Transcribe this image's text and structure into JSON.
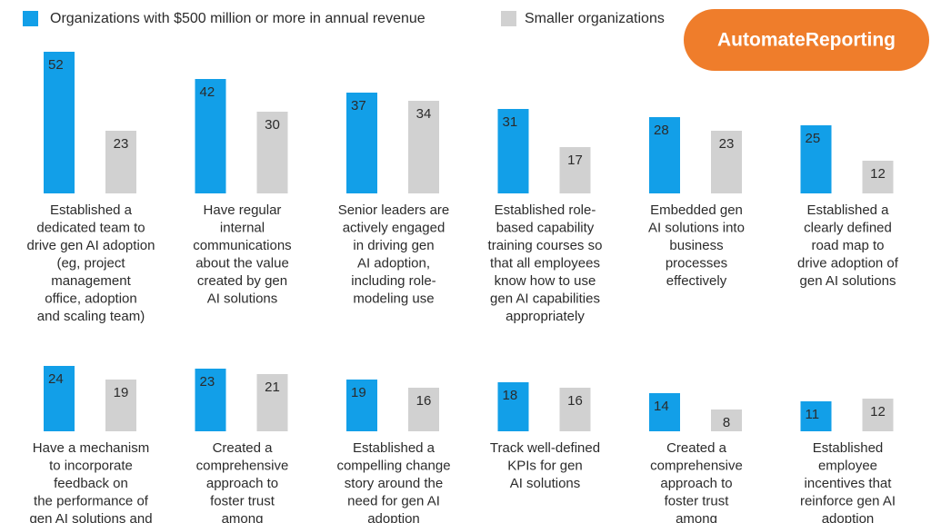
{
  "chart_data": {
    "type": "bar",
    "badge": "AutomateReporting",
    "series": [
      {
        "name": "Organizations with $500 million or more in annual revenue",
        "color": "#129fe8",
        "values": [
          52,
          42,
          37,
          31,
          28,
          25,
          24,
          23,
          19,
          18,
          14,
          11
        ]
      },
      {
        "name": "Smaller organizations",
        "color": "#d1d1d1",
        "values": [
          23,
          30,
          34,
          17,
          23,
          12,
          19,
          21,
          16,
          16,
          8,
          12
        ]
      }
    ],
    "categories": [
      [
        "Established a",
        "dedicated team to",
        "drive gen AI adoption",
        "(eg, project",
        "management",
        "office, adoption",
        "and scaling team)"
      ],
      [
        "Have regular",
        "internal",
        "communications",
        "about the value",
        "created by gen",
        "AI solutions"
      ],
      [
        "Senior leaders are",
        "actively engaged",
        "in driving gen",
        "AI adoption,",
        "including role-",
        "modeling use"
      ],
      [
        "Established role-",
        "based capability",
        "training courses so",
        "that all employees",
        "know how to use",
        "gen AI capabilities",
        "appropriately"
      ],
      [
        "Embedded gen",
        "AI solutions into",
        "business",
        "processes",
        "effectively"
      ],
      [
        "Established a",
        "clearly defined",
        "road map to",
        "drive adoption of",
        "gen AI solutions"
      ],
      [
        "Have a mechanism",
        "to incorporate",
        "feedback on",
        "the performance of",
        "gen AI solutions and"
      ],
      [
        "Created a",
        "comprehensive",
        "approach to",
        "foster trust",
        "among"
      ],
      [
        "Established a",
        "compelling change",
        "story around the",
        "need for gen AI",
        "adoption"
      ],
      [
        "Track well-defined",
        "KPIs for gen",
        "AI solutions"
      ],
      [
        "Created a",
        "comprehensive",
        "approach to",
        "foster trust",
        "among"
      ],
      [
        "Established",
        "employee",
        "incentives that",
        "reinforce gen AI",
        "adoption"
      ]
    ]
  }
}
